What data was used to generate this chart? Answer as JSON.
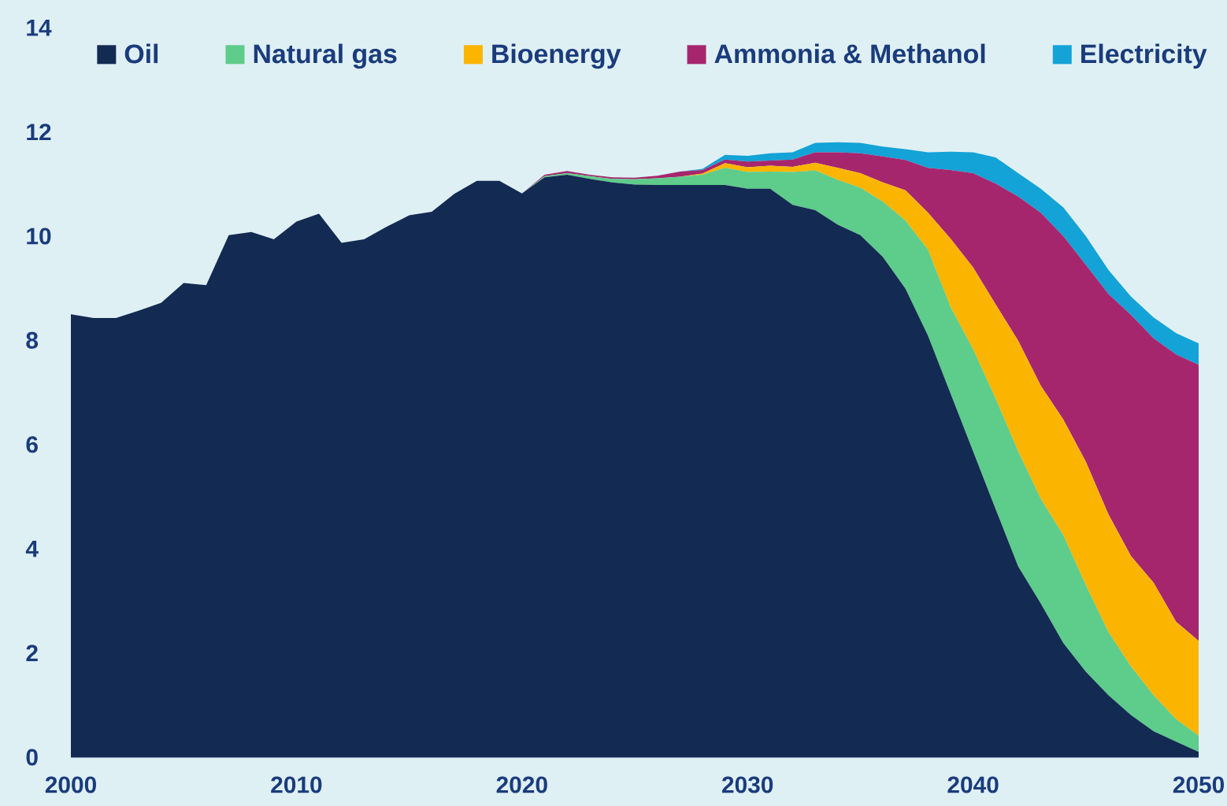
{
  "chart_data": {
    "type": "area",
    "stacked": true,
    "legend": "top",
    "x": [
      2000,
      2001,
      2002,
      2003,
      2004,
      2005,
      2006,
      2007,
      2008,
      2009,
      2010,
      2011,
      2012,
      2013,
      2014,
      2015,
      2016,
      2017,
      2018,
      2019,
      2020,
      2021,
      2022,
      2023,
      2024,
      2025,
      2026,
      2027,
      2028,
      2029,
      2030,
      2031,
      2032,
      2033,
      2034,
      2035,
      2036,
      2037,
      2038,
      2039,
      2040,
      2041,
      2042,
      2043,
      2044,
      2045,
      2046,
      2047,
      2048,
      2049,
      2050
    ],
    "xlim": [
      2000,
      2050
    ],
    "xticks": [
      2000,
      2010,
      2020,
      2030,
      2040,
      2050
    ],
    "ylim": [
      0,
      14
    ],
    "yticks": [
      0,
      2,
      4,
      6,
      8,
      10,
      12,
      14
    ],
    "series": [
      {
        "name": "Oil",
        "color": "#132a52",
        "values": [
          8.5,
          8.43,
          8.43,
          8.57,
          8.72,
          9.1,
          9.06,
          10.02,
          10.08,
          9.94,
          10.28,
          10.43,
          9.87,
          9.94,
          10.18,
          10.4,
          10.47,
          10.81,
          11.06,
          11.06,
          10.82,
          11.13,
          11.18,
          11.1,
          11.03,
          10.99,
          10.98,
          10.98,
          10.98,
          10.98,
          10.91,
          10.91,
          10.6,
          10.5,
          10.22,
          10.02,
          9.6,
          8.99,
          8.09,
          6.98,
          5.87,
          4.76,
          3.66,
          2.95,
          2.19,
          1.64,
          1.19,
          0.81,
          0.5,
          0.3,
          0.1
        ]
      },
      {
        "name": "Natural gas",
        "color": "#5ecc8a",
        "values": [
          0,
          0,
          0,
          0,
          0,
          0,
          0,
          0,
          0,
          0,
          0,
          0,
          0,
          0,
          0,
          0,
          0,
          0,
          0,
          0,
          0,
          0.02,
          0.03,
          0.05,
          0.07,
          0.1,
          0.13,
          0.16,
          0.2,
          0.33,
          0.32,
          0.33,
          0.63,
          0.76,
          0.86,
          0.91,
          1.06,
          1.31,
          1.65,
          1.66,
          1.96,
          2.12,
          2.21,
          2.01,
          2.07,
          1.66,
          1.21,
          0.93,
          0.69,
          0.43,
          0.31
        ]
      },
      {
        "name": "Bioenergy",
        "color": "#fbb500",
        "values": [
          0,
          0,
          0,
          0,
          0,
          0,
          0,
          0,
          0,
          0,
          0,
          0,
          0,
          0,
          0,
          0,
          0,
          0,
          0,
          0,
          0,
          0,
          0,
          0,
          0,
          0,
          0,
          0,
          0.02,
          0.09,
          0.09,
          0.11,
          0.1,
          0.15,
          0.23,
          0.28,
          0.37,
          0.58,
          0.71,
          1.31,
          1.57,
          1.81,
          2.12,
          2.17,
          2.22,
          2.37,
          2.26,
          2.12,
          2.16,
          1.87,
          1.82
        ]
      },
      {
        "name": "Ammonia & Methanol",
        "color": "#a6266e",
        "values": [
          0,
          0,
          0,
          0,
          0,
          0,
          0,
          0,
          0,
          0,
          0,
          0,
          0,
          0,
          0,
          0,
          0,
          0,
          0,
          0,
          0,
          0.03,
          0.04,
          0.03,
          0.03,
          0.03,
          0.05,
          0.1,
          0.07,
          0.07,
          0.11,
          0.1,
          0.14,
          0.2,
          0.3,
          0.38,
          0.5,
          0.58,
          0.86,
          1.32,
          1.81,
          2.32,
          2.77,
          3.32,
          3.52,
          3.78,
          4.23,
          4.63,
          4.69,
          5.13,
          5.3
        ]
      },
      {
        "name": "Electricity",
        "color": "#13a3d6",
        "values": [
          0,
          0,
          0,
          0,
          0,
          0,
          0,
          0,
          0,
          0,
          0,
          0,
          0,
          0,
          0,
          0,
          0,
          0,
          0,
          0,
          0,
          0,
          0,
          0,
          0,
          0,
          0,
          0,
          0.02,
          0.09,
          0.11,
          0.14,
          0.14,
          0.18,
          0.19,
          0.2,
          0.19,
          0.21,
          0.3,
          0.35,
          0.4,
          0.5,
          0.45,
          0.46,
          0.55,
          0.55,
          0.46,
          0.35,
          0.4,
          0.41,
          0.41
        ]
      }
    ]
  }
}
